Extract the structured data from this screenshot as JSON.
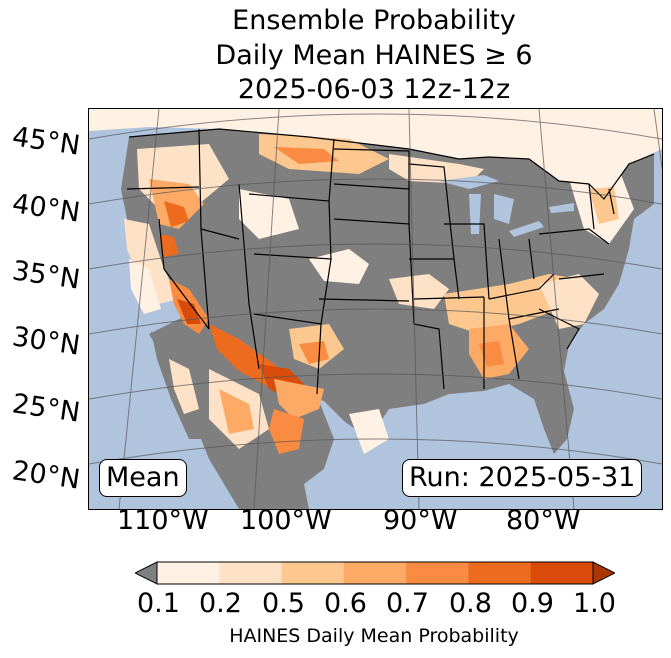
{
  "title": {
    "line1": "Ensemble Probability",
    "line2": "Daily Mean HAINES ≥ 6",
    "line3": "2025-06-03 12z-12z"
  },
  "map": {
    "lat_labels": [
      "45°N",
      "40°N",
      "35°N",
      "30°N",
      "25°N",
      "20°N"
    ],
    "lon_labels": [
      "110°W",
      "100°W",
      "90°W",
      "80°W"
    ],
    "stat_label": "Mean",
    "run_label": "Run: 2025-05-31",
    "ocean_color": "#b0c4de",
    "land_color": "#7f7f7f"
  },
  "colorbar": {
    "ticks": [
      "0.1",
      "0.2",
      "0.5",
      "0.6",
      "0.7",
      "0.8",
      "0.9",
      "1.0"
    ],
    "colors": [
      "#fff1e4",
      "#fee2c7",
      "#fdc790",
      "#fdaa66",
      "#f98b42",
      "#ec6b1f",
      "#d84b09"
    ],
    "under_color": "#7f7f7f",
    "over_color": "#a83703",
    "label": "HAINES Daily Mean Probability"
  }
}
